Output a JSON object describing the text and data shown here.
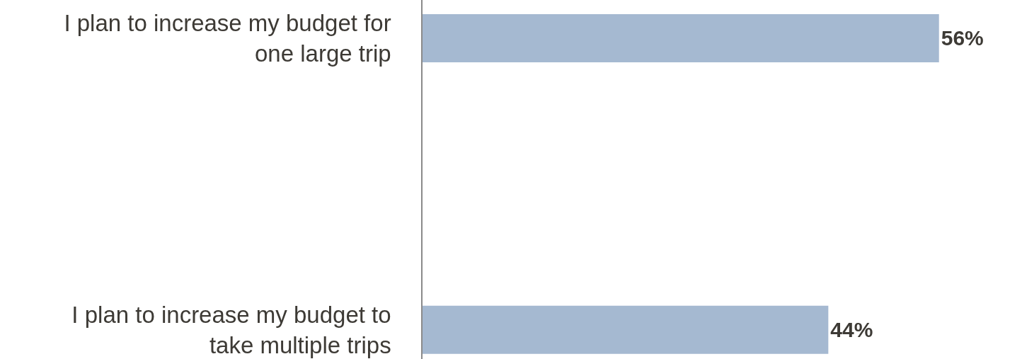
{
  "chart_data": {
    "type": "bar",
    "orientation": "horizontal",
    "categories": [
      "I plan to increase my budget for one large trip",
      "I plan to increase my budget to take multiple trips"
    ],
    "values": [
      56,
      44
    ],
    "value_labels": [
      "56%",
      "44%"
    ],
    "color": "#a5b9d1",
    "xlim": [
      0,
      65
    ],
    "tick_labels": "y"
  }
}
